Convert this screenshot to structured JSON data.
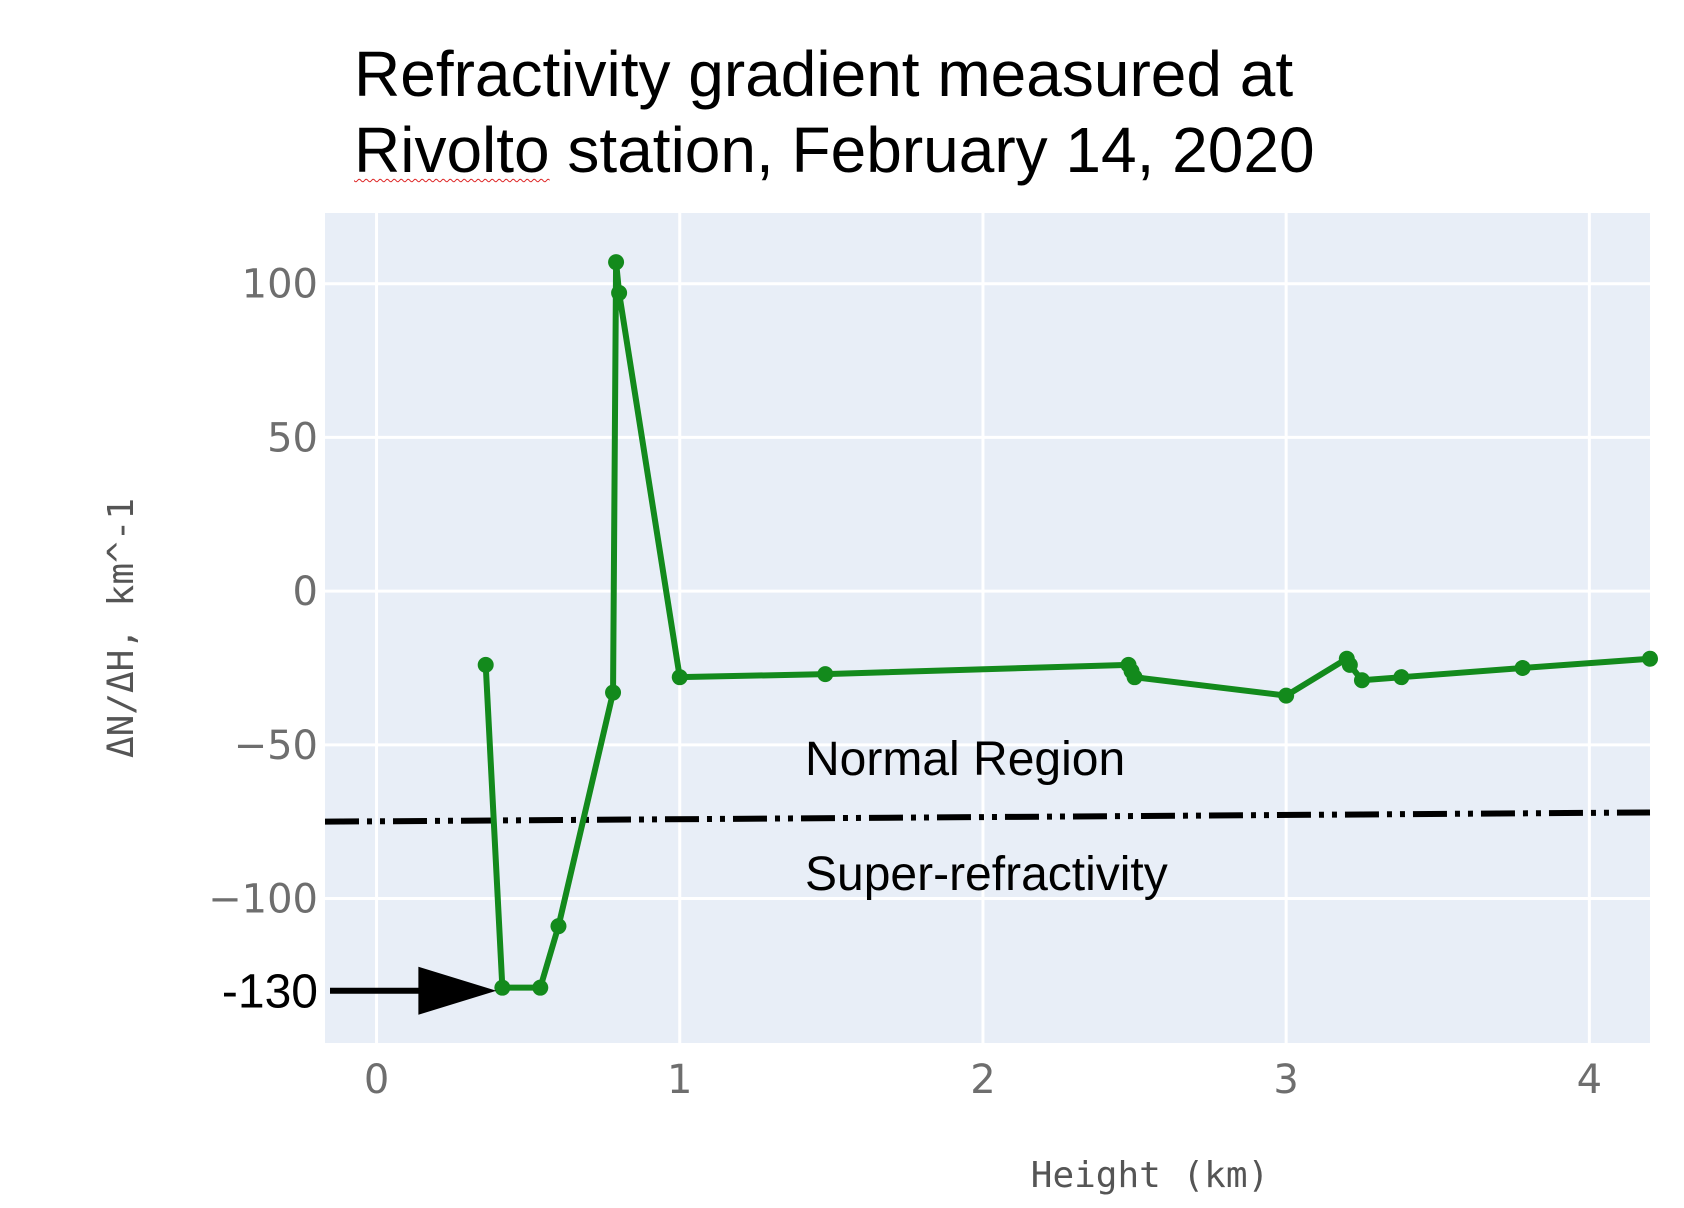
{
  "title": {
    "line1": "Refractivity gradient measured at",
    "line2_part1": "Rivolto",
    "line2_part2": " station, February 14, 2020"
  },
  "chart_data": {
    "type": "line",
    "title": "Refractivity gradient measured at Rivolto station, February 14, 2020",
    "xlabel": "Height (km)",
    "ylabel": "ΔN/ΔH, km^-1",
    "xlim": [
      -0.17,
      4.2
    ],
    "ylim": [
      -147,
      123
    ],
    "xticks": [
      0,
      1,
      2,
      3,
      4
    ],
    "yticks": [
      100,
      50,
      0,
      -50,
      -100
    ],
    "grid": true,
    "series": [
      {
        "color": "#138a1c",
        "x": [
          0.36,
          0.415,
          0.54,
          0.6,
          0.78,
          0.79,
          0.8,
          1.0,
          1.48,
          2.48,
          2.49,
          2.5,
          3.0,
          3.2,
          3.21,
          3.25,
          3.38,
          3.78,
          4.2
        ],
        "y": [
          -24,
          -129,
          -129,
          -109,
          -33,
          107,
          97,
          -28,
          -27,
          -24,
          -26,
          -28,
          -34,
          -22,
          -24,
          -29,
          -28,
          -25,
          -22
        ]
      }
    ],
    "reference_line": {
      "y_start": -75,
      "y_end": -72,
      "style": "dash-dot",
      "color": "#000000"
    },
    "annotations": {
      "normal_region": "Normal Region",
      "super_refractivity": "Super-refractivity",
      "min_label": "-130",
      "min_value": -130
    }
  }
}
